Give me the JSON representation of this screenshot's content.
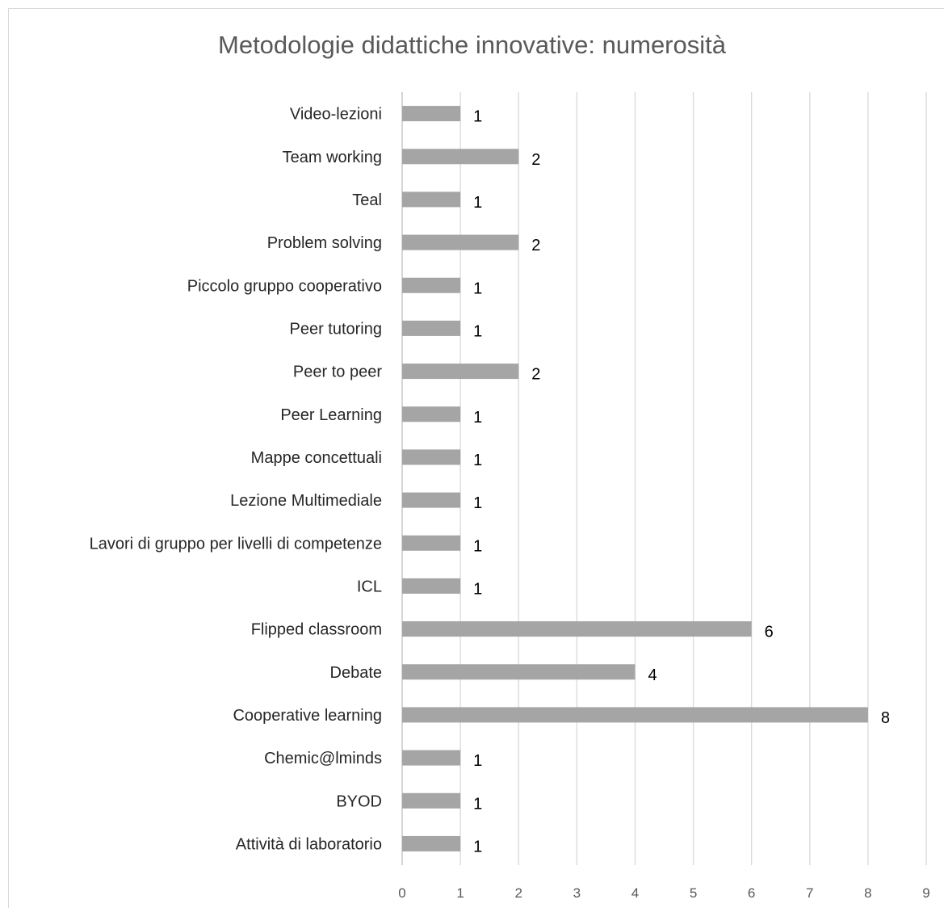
{
  "chart_data": {
    "type": "bar",
    "orientation": "horizontal",
    "title": "Metodologie didattiche innovative: numerosità",
    "categories": [
      "Video-lezioni",
      "Team working",
      "Teal",
      "Problem solving",
      "Piccolo gruppo cooperativo",
      "Peer tutoring",
      "Peer to peer",
      "Peer Learning",
      "Mappe concettuali",
      "Lezione Multimediale",
      "Lavori di gruppo per livelli di competenze",
      "ICL",
      "Flipped classroom",
      "Debate",
      "Cooperative learning",
      "Chemic@lminds",
      "BYOD",
      "Attività di laboratorio"
    ],
    "values": [
      1,
      2,
      1,
      2,
      1,
      1,
      2,
      1,
      1,
      1,
      1,
      1,
      6,
      4,
      8,
      1,
      1,
      1
    ],
    "xlim": [
      0,
      9
    ],
    "x_ticks": [
      "0",
      "1",
      "2",
      "3",
      "4",
      "5",
      "6",
      "7",
      "8",
      "9"
    ],
    "xlabel": "",
    "ylabel": "",
    "grid": "vertical",
    "legend": "none",
    "data_labels": true,
    "colors": {
      "bar": "#a5a5a5",
      "grid": "#d9d9d9",
      "title": "#595959",
      "category_text": "#262626",
      "tick_text": "#595959"
    }
  }
}
